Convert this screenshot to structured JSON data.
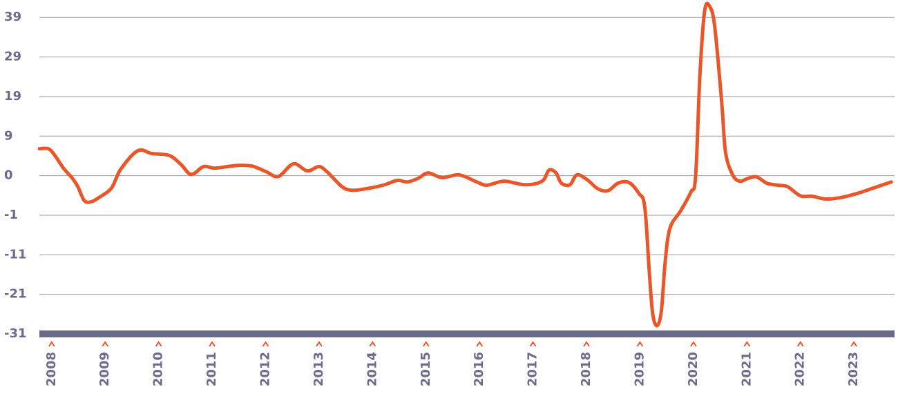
{
  "chart_data": {
    "type": "line",
    "x": [
      2007.77,
      2007.94,
      2008.06,
      2008.22,
      2008.39,
      2008.49,
      2008.61,
      2008.74,
      2008.9,
      2009.12,
      2009.29,
      2009.61,
      2009.87,
      2010.2,
      2010.42,
      2010.61,
      2010.84,
      2011.04,
      2011.29,
      2011.49,
      2011.75,
      2012.01,
      2012.24,
      2012.52,
      2012.78,
      2013.0,
      2013.17,
      2013.43,
      2013.62,
      2013.88,
      2014.2,
      2014.46,
      2014.65,
      2014.85,
      2015.04,
      2015.3,
      2015.62,
      2015.95,
      2016.14,
      2016.46,
      2016.85,
      2017.17,
      2017.3,
      2017.43,
      2017.53,
      2017.69,
      2017.82,
      2018.01,
      2018.21,
      2018.4,
      2018.59,
      2018.79,
      2018.98,
      2019.09,
      2019.18,
      2019.24,
      2019.32,
      2019.4,
      2019.47,
      2019.56,
      2019.76,
      2019.95,
      2020.04,
      2020.12,
      2020.21,
      2020.31,
      2020.4,
      2020.53,
      2020.6,
      2020.73,
      2020.86,
      2021.02,
      2021.18,
      2021.37,
      2021.57,
      2021.76,
      2022.0,
      2022.22,
      2022.47,
      2022.73,
      2023.06,
      2023.37,
      2023.7
    ],
    "series": [
      {
        "color": "#e8562a",
        "values": [
          5.8,
          5.8,
          4.1,
          0.9,
          -1.7,
          -3.8,
          -7.3,
          -7.6,
          -6.4,
          -4.1,
          0.6,
          5.3,
          4.6,
          4.1,
          1.8,
          -0.7,
          1.3,
          0.9,
          1.3,
          1.6,
          1.4,
          0.0,
          -1.2,
          2.0,
          0.2,
          1.3,
          -0.3,
          -3.8,
          -4.7,
          -4.3,
          -3.4,
          -2.2,
          -2.6,
          -1.7,
          -0.3,
          -1.5,
          -0.8,
          -2.6,
          -3.4,
          -2.4,
          -3.3,
          -2.4,
          0.4,
          -0.3,
          -2.9,
          -3.3,
          -0.8,
          -2.0,
          -4.3,
          -4.8,
          -2.9,
          -2.7,
          -5.5,
          -9.0,
          -26.5,
          -36.1,
          -38.9,
          -35.2,
          -23.0,
          -14.3,
          -9.9,
          -5.2,
          -1.2,
          24.2,
          40.7,
          41.6,
          36.4,
          17.2,
          4.9,
          -0.7,
          -2.4,
          -1.7,
          -1.3,
          -2.9,
          -3.4,
          -3.8,
          -6.1,
          -6.2,
          -6.9,
          -6.6,
          -5.5,
          -4.1,
          -2.6
        ]
      }
    ],
    "xlim": [
      2007.77,
      2023.76
    ],
    "xticks": [
      2008,
      2009,
      2010,
      2011,
      2012,
      2013,
      2014,
      2015,
      2016,
      2017,
      2018,
      2019,
      2020,
      2021,
      2022,
      2023
    ],
    "ylim": [
      -41,
      42.7
    ],
    "yticks": [
      39,
      29,
      19,
      9,
      {
        "value": -1,
        "label": "0"
      },
      {
        "value": -11,
        "label": "-1"
      },
      {
        "value": -21,
        "label": "-11"
      },
      {
        "value": -31,
        "label": "-21"
      },
      {
        "value": -41,
        "label": "-31"
      }
    ],
    "grid": true
  }
}
